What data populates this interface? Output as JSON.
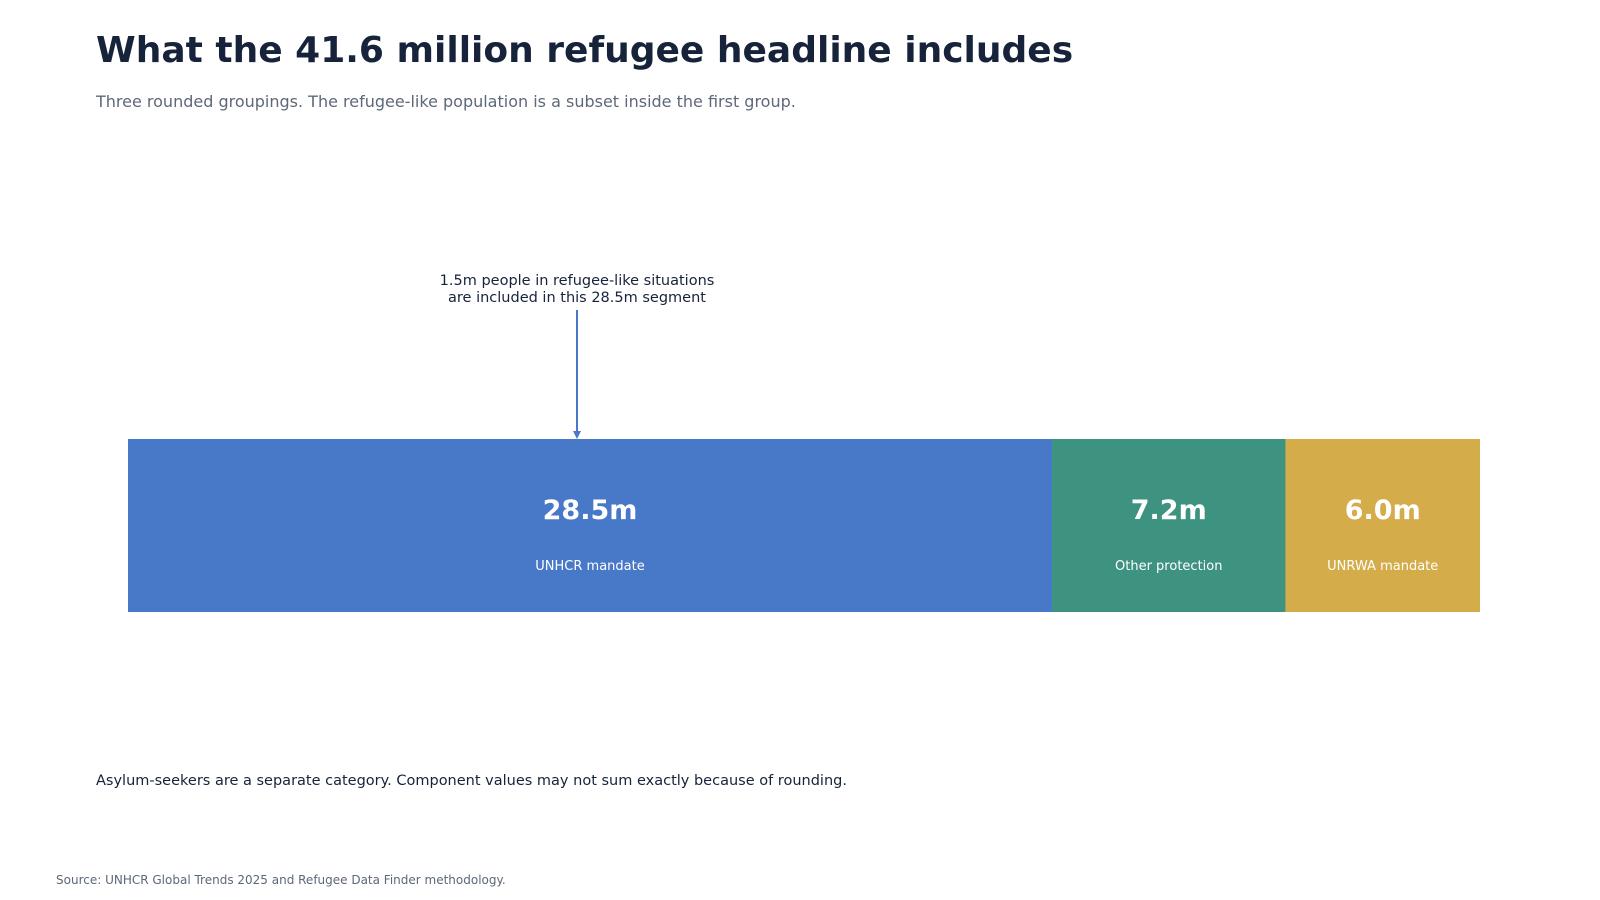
{
  "title": "What the 41.6 million refugee headline includes",
  "subtitle": "Three rounded groupings. The refugee-like population is a subset inside the first group.",
  "footnote": "Asylum-seekers are a separate category. Component values may not sum exactly because of rounding.",
  "source": "Source: UNHCR Global Trends 2025 and Refugee Data Finder methodology.",
  "chart_data": {
    "type": "bar",
    "orientation": "horizontal-stacked",
    "total": 41.6,
    "unit": "m",
    "segments": [
      {
        "label": "UNHCR mandate",
        "value": 28.5,
        "value_label": "28.5m",
        "color": "#4878c8"
      },
      {
        "label": "Other protection",
        "value": 7.2,
        "value_label": "7.2m",
        "color": "#3d9280"
      },
      {
        "label": "UNRWA mandate",
        "value": 6.0,
        "value_label": "6.0m",
        "color": "#d4ad4a"
      }
    ],
    "annotation": {
      "lines": [
        "1.5m people in refugee-like situations",
        "are included in this 28.5m segment"
      ],
      "subset_value": 1.5,
      "segment_index": 0,
      "color": "#4878c8"
    },
    "text_color": "#17233b",
    "grid": false,
    "legend": "none"
  }
}
